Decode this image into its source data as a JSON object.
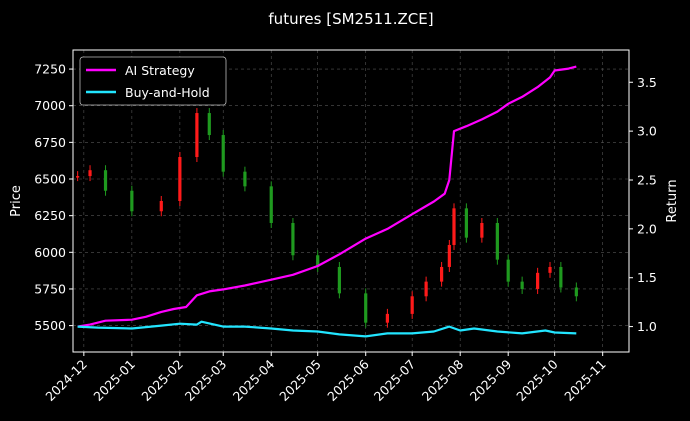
{
  "chart_data": {
    "type": "line",
    "title": "futures [SM2511.ZCE]",
    "ylabel_left": "Price",
    "ylabel_right": "Return",
    "x_range": [
      "2024-11-24",
      "2025-11-18"
    ],
    "x_ticks": [
      "2024-12",
      "2025-01",
      "2025-02",
      "2025-03",
      "2025-04",
      "2025-05",
      "2025-06",
      "2025-07",
      "2025-08",
      "2025-09",
      "2025-10",
      "2025-11"
    ],
    "ylim_left": [
      5320,
      7380
    ],
    "yticks_left": [
      5500,
      5750,
      6000,
      6250,
      6500,
      6750,
      7000,
      7250
    ],
    "ylim_right": [
      0.74,
      3.83
    ],
    "yticks_right": [
      1.0,
      1.5,
      2.0,
      2.5,
      3.0,
      3.5
    ],
    "grid": true,
    "legend_position": "top-left",
    "colors": {
      "up": "#ff1a1a",
      "down": "#1f9a1f",
      "ai": "#ff00ff",
      "bh": "#22e5ff",
      "background": "#000000",
      "axes": "#ffffff"
    },
    "series": [
      {
        "name": "AI Strategy",
        "axis": "right",
        "color": "#ff00ff",
        "x": [
          "2024-11-27",
          "2024-12-05",
          "2024-12-15",
          "2025-01-01",
          "2025-01-10",
          "2025-01-20",
          "2025-01-28",
          "2025-02-05",
          "2025-02-12",
          "2025-02-20",
          "2025-03-01",
          "2025-03-15",
          "2025-04-01",
          "2025-04-15",
          "2025-05-01",
          "2025-05-15",
          "2025-06-01",
          "2025-06-15",
          "2025-07-01",
          "2025-07-15",
          "2025-07-22",
          "2025-07-25",
          "2025-07-28",
          "2025-08-05",
          "2025-08-15",
          "2025-08-25",
          "2025-09-01",
          "2025-09-10",
          "2025-09-20",
          "2025-09-28",
          "2025-10-01",
          "2025-10-10",
          "2025-10-15"
        ],
        "values": [
          1.0,
          1.02,
          1.06,
          1.07,
          1.1,
          1.15,
          1.18,
          1.2,
          1.32,
          1.36,
          1.38,
          1.42,
          1.48,
          1.53,
          1.62,
          1.74,
          1.9,
          2.0,
          2.15,
          2.28,
          2.36,
          2.5,
          3.0,
          3.05,
          3.12,
          3.2,
          3.28,
          3.35,
          3.45,
          3.55,
          3.62,
          3.64,
          3.66
        ]
      },
      {
        "name": "Buy-and-Hold",
        "axis": "right",
        "color": "#22e5ff",
        "x": [
          "2024-11-27",
          "2024-12-10",
          "2025-01-01",
          "2025-01-20",
          "2025-02-01",
          "2025-02-12",
          "2025-02-15",
          "2025-03-01",
          "2025-03-15",
          "2025-04-01",
          "2025-04-15",
          "2025-05-01",
          "2025-05-15",
          "2025-06-01",
          "2025-06-15",
          "2025-07-01",
          "2025-07-15",
          "2025-07-25",
          "2025-08-01",
          "2025-08-10",
          "2025-08-25",
          "2025-09-10",
          "2025-09-25",
          "2025-10-01",
          "2025-10-15"
        ],
        "values": [
          1.0,
          0.99,
          0.98,
          1.01,
          1.03,
          1.02,
          1.05,
          1.0,
          1.0,
          0.98,
          0.96,
          0.95,
          0.92,
          0.9,
          0.93,
          0.93,
          0.95,
          1.0,
          0.96,
          0.98,
          0.95,
          0.93,
          0.96,
          0.94,
          0.93
        ]
      },
      {
        "name": "Price",
        "axis": "left",
        "kind": "candlestick",
        "x": [
          "2024-11-27",
          "2024-12-05",
          "2024-12-15",
          "2025-01-01",
          "2025-01-20",
          "2025-02-01",
          "2025-02-12",
          "2025-02-20",
          "2025-03-01",
          "2025-03-15",
          "2025-04-01",
          "2025-04-15",
          "2025-05-01",
          "2025-05-15",
          "2025-06-01",
          "2025-06-15",
          "2025-07-01",
          "2025-07-10",
          "2025-07-20",
          "2025-07-25",
          "2025-07-28",
          "2025-08-05",
          "2025-08-15",
          "2025-08-25",
          "2025-09-01",
          "2025-09-10",
          "2025-09-20",
          "2025-09-28",
          "2025-10-05",
          "2025-10-15"
        ],
        "values": [
          6520,
          6560,
          6420,
          6280,
          6350,
          6650,
          6950,
          6800,
          6550,
          6450,
          6200,
          5980,
          5900,
          5720,
          5520,
          5580,
          5700,
          5800,
          5900,
          6050,
          6300,
          6100,
          6200,
          5950,
          5800,
          5750,
          5860,
          5900,
          5760,
          5700
        ]
      }
    ]
  }
}
